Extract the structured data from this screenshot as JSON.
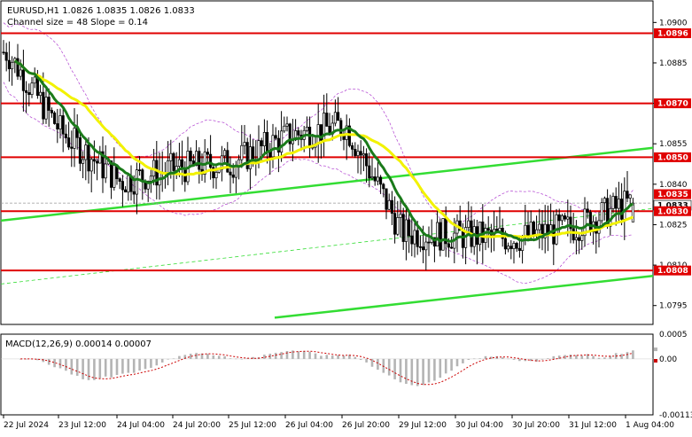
{
  "header": {
    "symbol_line": "EURUSD,H1  1.0826 1.0835 1.0826 1.0833",
    "channel_line": "Channel size = 48 Slope = 0.14"
  },
  "price_axis": {
    "ticks": [
      "1.0900",
      "1.0885",
      "1.0870",
      "1.0855",
      "1.0840",
      "1.0825",
      "1.0810",
      "1.0795"
    ],
    "level_labels": [
      {
        "value": "1.0896",
        "kind": "level"
      },
      {
        "value": "1.0870",
        "kind": "level"
      },
      {
        "value": "1.0850",
        "kind": "level"
      },
      {
        "value": "1.0835",
        "kind": "price"
      },
      {
        "value": "1.0833",
        "kind": "current"
      },
      {
        "value": "1.0830",
        "kind": "level"
      },
      {
        "value": "1.0808",
        "kind": "level"
      }
    ]
  },
  "time_axis": {
    "labels": [
      "22 Jul 2024",
      "23 Jul 12:00",
      "24 Jul 04:00",
      "24 Jul 20:00",
      "25 Jul 12:00",
      "26 Jul 04:00",
      "26 Jul 20:00",
      "29 Jul 12:00",
      "30 Jul 04:00",
      "30 Jul 20:00",
      "31 Jul 12:00",
      "1 Aug 04:00"
    ]
  },
  "macd": {
    "label": "MACD(12,26,9) 0.00014 0.00007",
    "ticks": [
      "0.0005",
      "0.00",
      "-0.00113"
    ]
  },
  "colors": {
    "background": "#ffffff",
    "candles": "#000000",
    "levels": "#e00000",
    "channel": "#33dd33",
    "ma_fast": "#1a7a1a",
    "ma_slow": "#f2f200",
    "envelope": "#b040d0",
    "macd_hist": "#b4b4b4",
    "macd_signal": "#cc0000"
  },
  "chart_data": {
    "type": "candlestick",
    "symbol": "EURUSD",
    "timeframe": "H1",
    "ohlc_last": {
      "open": 1.0826,
      "high": 1.0835,
      "low": 1.0826,
      "close": 1.0833
    },
    "ylim": [
      1.0788,
      1.0908
    ],
    "horizontal_levels": [
      1.0896,
      1.087,
      1.085,
      1.083,
      1.0808
    ],
    "current_price": 1.0833,
    "approx_close_path": [
      {
        "t": "22 Jul 2024",
        "close": 1.0889
      },
      {
        "t": "23 Jul 12:00",
        "close": 1.0859
      },
      {
        "t": "24 Jul 04:00",
        "close": 1.0841
      },
      {
        "t": "24 Jul 20:00",
        "close": 1.0846
      },
      {
        "t": "25 Jul 12:00",
        "close": 1.0848
      },
      {
        "t": "26 Jul 04:00",
        "close": 1.0858
      },
      {
        "t": "26 Jul 20:00",
        "close": 1.0862
      },
      {
        "t": "29 Jul 12:00",
        "close": 1.0822
      },
      {
        "t": "30 Jul 04:00",
        "close": 1.0821
      },
      {
        "t": "30 Jul 20:00",
        "close": 1.082
      },
      {
        "t": "31 Jul 12:00",
        "close": 1.0824
      },
      {
        "t": "1 Aug 04:00",
        "close": 1.0833
      }
    ],
    "macd": {
      "value": 0.00014,
      "signal": 7e-05,
      "ylim": [
        -0.00113,
        0.0005
      ]
    }
  }
}
